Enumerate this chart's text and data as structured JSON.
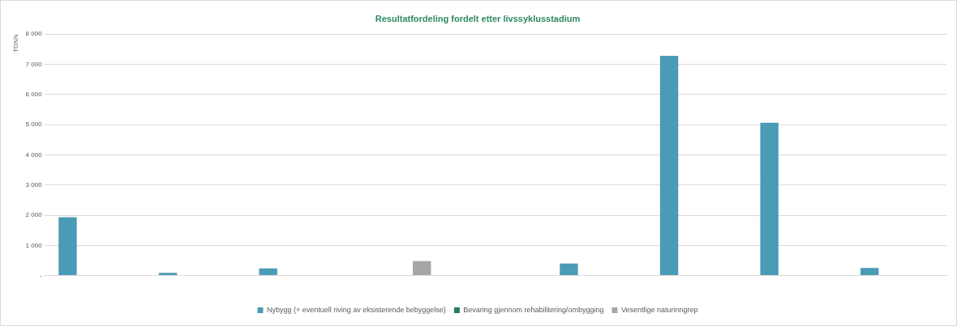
{
  "chart_data": {
    "type": "bar",
    "title": "Resultatfordeling fordelt etter livssyklusstadium",
    "ylabel": "TONN",
    "categories": [
      null,
      null,
      null,
      null,
      null,
      null,
      null,
      null,
      null
    ],
    "series": [
      {
        "name": "Nybygg (+ eventuell riving av eksisterende bebyggelse)",
        "color": "#4a9bb5",
        "values": [
          1930,
          90,
          240,
          null,
          null,
          400,
          7280,
          5060,
          250
        ]
      },
      {
        "name": "Bevaring gjennom rehabilitering/ombygging",
        "color": "#2a7a5e",
        "values": [
          null,
          null,
          null,
          null,
          null,
          null,
          null,
          null,
          null
        ]
      },
      {
        "name": "Vesentlige naturinngrep",
        "color": "#a6a6a6",
        "values": [
          null,
          null,
          null,
          480,
          null,
          null,
          null,
          null,
          null
        ]
      }
    ],
    "ylim": [
      0,
      8000
    ],
    "yticks": [
      {
        "value": 0,
        "label": "-"
      },
      {
        "value": 1000,
        "label": "1 000"
      },
      {
        "value": 2000,
        "label": "2 000"
      },
      {
        "value": 3000,
        "label": "3 000"
      },
      {
        "value": 4000,
        "label": "4 000"
      },
      {
        "value": 5000,
        "label": "5 000"
      },
      {
        "value": 6000,
        "label": "6 000"
      },
      {
        "value": 7000,
        "label": "7 000"
      },
      {
        "value": 8000,
        "label": "8 000"
      }
    ],
    "grid": "y",
    "legend": "bottom"
  }
}
